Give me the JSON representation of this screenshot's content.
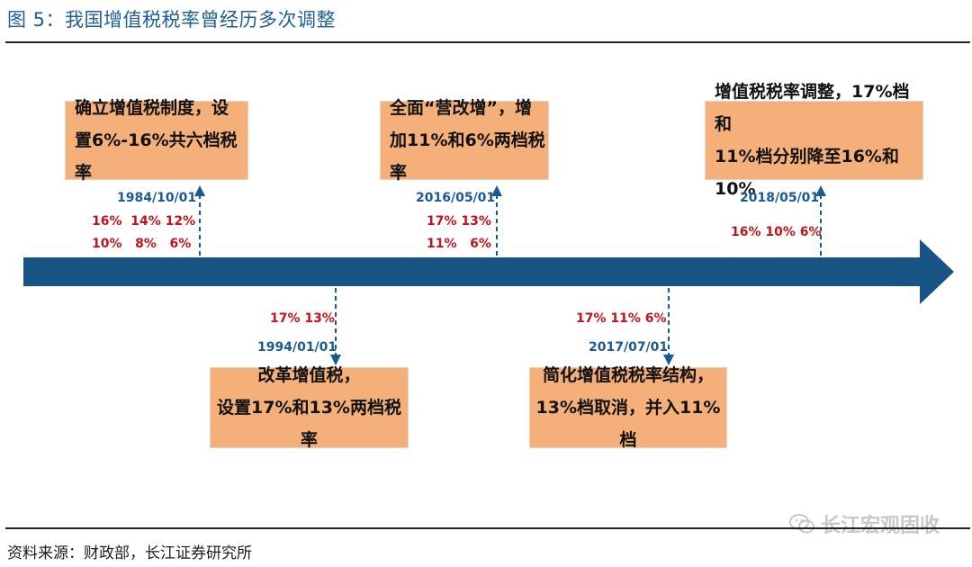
{
  "figure": {
    "title": "图 5：我国增值税税率曾经历多次调整",
    "source": "资料来源：财政部，长江证券研究所",
    "watermark": "长江宏观固收"
  },
  "colors": {
    "timeline": "#175385",
    "box_fill": "#f5b07a",
    "date_text": "#1a5a92",
    "rate_text": "#c0141c",
    "title_text": "#1f5e96"
  },
  "events": [
    {
      "date": "1984/10/01",
      "rates_line1": "16%  14% 12%",
      "rates_line2": "10%   8%   6%",
      "desc_line1": "确立增值税制度，设",
      "desc_line2": "置6%-16%共六档税率"
    },
    {
      "date": "1994/01/01",
      "rates_line1": "17% 13%",
      "desc_line1": "改革增值税，",
      "desc_line2": "设置17%和13%两档税率"
    },
    {
      "date": "2016/05/01",
      "rates_line1": "17% 13%",
      "rates_line2": "11%   6%",
      "desc_line1": "全面“营改增”，增",
      "desc_line2": "加11%和6%两档税率"
    },
    {
      "date": "2017/07/01",
      "rates_line1": "17% 11% 6%",
      "desc_line1": "简化增值税税率结构，",
      "desc_line2": "13%档取消，并入11%档"
    },
    {
      "date": "2018/05/01",
      "rates_line1": "16% 10% 6%",
      "desc_line1": "增值税税率调整，17%档和",
      "desc_line2": "11%档分别降至16%和10%"
    }
  ]
}
